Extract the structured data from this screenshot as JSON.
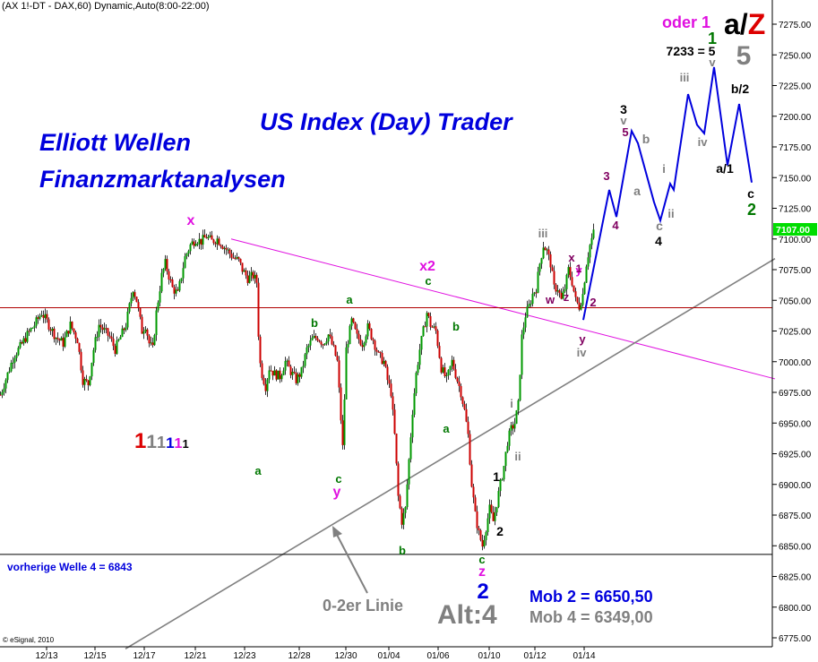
{
  "header": {
    "title": "(AX 1!-DT - DAX,60) Dynamic,Auto(8:00-22:00)"
  },
  "copyright": "© eSignal, 2010",
  "colors": {
    "blue": "#0000dd",
    "magenta": "#e010e0",
    "green": "#007700",
    "grey": "#808080",
    "red": "#dd0000",
    "purple": "#800060",
    "black": "#000000",
    "priceRed": "#b00000"
  },
  "chart_data": {
    "type": "candlestick",
    "title": "",
    "xlabel": "",
    "ylabel": "",
    "ylim": [
      6762,
      7290
    ],
    "y_ticks": [
      "7275.00",
      "7250.00",
      "7225.00",
      "7200.00",
      "7175.00",
      "7150.00",
      "7125.00",
      "7100.00",
      "7075.00",
      "7050.00",
      "7025.00",
      "7000.00",
      "6975.00",
      "6950.00",
      "6925.00",
      "6900.00",
      "6875.00",
      "6850.00",
      "6825.00",
      "6800.00",
      "6775.00"
    ],
    "x_ticks": [
      "12/13",
      "12/15",
      "12/17",
      "12/21",
      "12/23",
      "12/28",
      "12/30",
      "01/04",
      "01/06",
      "01/10",
      "01/12",
      "01/14"
    ],
    "last_price_label": "7107.00",
    "price_series_approx": [
      [
        0,
        6973
      ],
      [
        8,
        6990
      ],
      [
        15,
        7005
      ],
      [
        22,
        7012
      ],
      [
        30,
        7022
      ],
      [
        38,
        7030
      ],
      [
        46,
        7040
      ],
      [
        54,
        7030
      ],
      [
        62,
        7020
      ],
      [
        70,
        7015
      ],
      [
        78,
        7030
      ],
      [
        86,
        7018
      ],
      [
        92,
        6985
      ],
      [
        98,
        6982
      ],
      [
        104,
        7010
      ],
      [
        110,
        7030
      ],
      [
        116,
        7025
      ],
      [
        122,
        7020
      ],
      [
        128,
        7010
      ],
      [
        134,
        7020
      ],
      [
        140,
        7030
      ],
      [
        148,
        7060
      ],
      [
        152,
        7050
      ],
      [
        158,
        7025
      ],
      [
        162,
        7030
      ],
      [
        166,
        7015
      ],
      [
        170,
        7010
      ],
      [
        174,
        7040
      ],
      [
        180,
        7070
      ],
      [
        184,
        7080
      ],
      [
        188,
        7070
      ],
      [
        192,
        7060
      ],
      [
        198,
        7055
      ],
      [
        202,
        7070
      ],
      [
        206,
        7085
      ],
      [
        212,
        7095
      ],
      [
        218,
        7100
      ],
      [
        224,
        7098
      ],
      [
        230,
        7102
      ],
      [
        236,
        7098
      ],
      [
        242,
        7100
      ],
      [
        248,
        7095
      ],
      [
        254,
        7090
      ],
      [
        260,
        7085
      ],
      [
        266,
        7082
      ],
      [
        270,
        7075
      ],
      [
        276,
        7068
      ],
      [
        282,
        7070
      ],
      [
        286,
        7065
      ],
      [
        289,
        7002
      ],
      [
        292,
        6990
      ],
      [
        296,
        6980
      ],
      [
        300,
        6995
      ],
      [
        306,
        6990
      ],
      [
        312,
        6988
      ],
      [
        318,
        7000
      ],
      [
        324,
        6992
      ],
      [
        330,
        6985
      ],
      [
        336,
        6992
      ],
      [
        342,
        7010
      ],
      [
        348,
        7018
      ],
      [
        354,
        7020
      ],
      [
        360,
        7015
      ],
      [
        366,
        7022
      ],
      [
        372,
        7010
      ],
      [
        376,
        7000
      ],
      [
        379,
        6965
      ],
      [
        382,
        6930
      ],
      [
        386,
        7010
      ],
      [
        392,
        7033
      ],
      [
        398,
        7020
      ],
      [
        404,
        7015
      ],
      [
        410,
        7028
      ],
      [
        416,
        7018
      ],
      [
        422,
        7005
      ],
      [
        428,
        7000
      ],
      [
        432,
        6985
      ],
      [
        436,
        6975
      ],
      [
        440,
        6940
      ],
      [
        444,
        6890
      ],
      [
        448,
        6870
      ],
      [
        452,
        6880
      ],
      [
        456,
        6920
      ],
      [
        460,
        6960
      ],
      [
        464,
        6990
      ],
      [
        468,
        7010
      ],
      [
        472,
        7025
      ],
      [
        476,
        7040
      ],
      [
        480,
        7030
      ],
      [
        486,
        7025
      ],
      [
        492,
        6995
      ],
      [
        498,
        6985
      ],
      [
        504,
        7000
      ],
      [
        508,
        6990
      ],
      [
        514,
        6975
      ],
      [
        518,
        6960
      ],
      [
        522,
        6940
      ],
      [
        526,
        6900
      ],
      [
        530,
        6875
      ],
      [
        534,
        6860
      ],
      [
        538,
        6850
      ],
      [
        542,
        6865
      ],
      [
        546,
        6880
      ],
      [
        550,
        6870
      ],
      [
        554,
        6885
      ],
      [
        558,
        6900
      ],
      [
        562,
        6915
      ],
      [
        566,
        6935
      ],
      [
        570,
        6945
      ],
      [
        574,
        6950
      ],
      [
        578,
        6965
      ],
      [
        582,
        7020
      ],
      [
        586,
        7038
      ],
      [
        590,
        7045
      ],
      [
        594,
        7055
      ],
      [
        598,
        7060
      ],
      [
        602,
        7080
      ],
      [
        606,
        7095
      ],
      [
        610,
        7090
      ],
      [
        614,
        7080
      ],
      [
        618,
        7060
      ],
      [
        622,
        7060
      ],
      [
        626,
        7050
      ],
      [
        630,
        7060
      ],
      [
        634,
        7075
      ],
      [
        638,
        7065
      ],
      [
        642,
        7050
      ],
      [
        646,
        7045
      ],
      [
        650,
        7055
      ],
      [
        654,
        7080
      ],
      [
        658,
        7095
      ],
      [
        662,
        7105
      ]
    ],
    "projection_path": [
      [
        651,
        7034
      ],
      [
        680,
        7140
      ],
      [
        688,
        7118
      ],
      [
        705,
        7188
      ],
      [
        712,
        7178
      ],
      [
        730,
        7130
      ],
      [
        737,
        7115
      ],
      [
        748,
        7145
      ],
      [
        752,
        7140
      ],
      [
        755,
        7155
      ],
      [
        768,
        7218
      ],
      [
        778,
        7193
      ],
      [
        786,
        7186
      ],
      [
        797,
        7240
      ],
      [
        812,
        7160
      ],
      [
        825,
        7210
      ],
      [
        839,
        7146
      ]
    ],
    "trendlines": [
      {
        "name": "magenta-x-x2",
        "from": [
          258,
          7100
        ],
        "to": [
          865,
          6986
        ],
        "color": "#e010e0"
      },
      {
        "name": "0-2er-linie",
        "from": [
          140,
          6766
        ],
        "to": [
          865,
          7084
        ],
        "color": "#808080"
      },
      {
        "name": "red-horizontal",
        "from": [
          0,
          7044
        ],
        "to": [
          862,
          7044
        ],
        "color": "#b00000"
      },
      {
        "name": "black-horizontal",
        "from": [
          0,
          6843
        ],
        "to": [
          862,
          6843
        ],
        "color": "#000000"
      }
    ],
    "wave_labels": [
      {
        "text": "x",
        "x": 213,
        "y": 251,
        "color": "#e010e0",
        "size": 16,
        "bold": true
      },
      {
        "text": "x2",
        "x": 477,
        "y": 302,
        "color": "#e010e0",
        "size": 16,
        "bold": true
      },
      {
        "text": "c",
        "x": 478,
        "y": 318,
        "color": "#007700",
        "size": 13,
        "bold": true
      },
      {
        "text": "a",
        "x": 390,
        "y": 339,
        "color": "#007700",
        "size": 13,
        "bold": true
      },
      {
        "text": "b",
        "x": 351,
        "y": 365,
        "color": "#007700",
        "size": 13,
        "bold": true
      },
      {
        "text": "b",
        "x": 509,
        "y": 369,
        "color": "#007700",
        "size": 13,
        "bold": true
      },
      {
        "text": "a",
        "x": 498,
        "y": 483,
        "color": "#007700",
        "size": 13,
        "bold": true
      },
      {
        "text": "a",
        "x": 288,
        "y": 530,
        "color": "#007700",
        "size": 13,
        "bold": true
      },
      {
        "text": "c",
        "x": 378,
        "y": 539,
        "color": "#007700",
        "size": 13,
        "bold": true
      },
      {
        "text": "y",
        "x": 376,
        "y": 554,
        "color": "#e010e0",
        "size": 16,
        "bold": true
      },
      {
        "text": "b",
        "x": 449,
        "y": 619,
        "color": "#007700",
        "size": 13,
        "bold": true
      },
      {
        "text": "c",
        "x": 538,
        "y": 629,
        "color": "#007700",
        "size": 13,
        "bold": true
      },
      {
        "text": "z",
        "x": 538,
        "y": 643,
        "color": "#e010e0",
        "size": 16,
        "bold": true
      },
      {
        "text": "2",
        "x": 539,
        "y": 668,
        "color": "#0000dd",
        "size": 24,
        "bold": true
      },
      {
        "text": "1",
        "x": 554,
        "y": 537,
        "color": "#000000",
        "size": 14,
        "bold": true
      },
      {
        "text": "2",
        "x": 558,
        "y": 598,
        "color": "#000000",
        "size": 14,
        "bold": true
      },
      {
        "text": "i",
        "x": 571,
        "y": 455,
        "color": "#808080",
        "size": 13,
        "bold": true
      },
      {
        "text": "ii",
        "x": 578,
        "y": 514,
        "color": "#808080",
        "size": 13,
        "bold": true
      },
      {
        "text": "iii",
        "x": 606,
        "y": 265,
        "color": "#808080",
        "size": 13,
        "bold": true
      },
      {
        "text": "x",
        "x": 638,
        "y": 292,
        "color": "#800060",
        "size": 13,
        "bold": true
      },
      {
        "text": "y",
        "x": 646,
        "y": 306,
        "color": "#e010e0",
        "size": 13,
        "bold": true
      },
      {
        "text": "w",
        "x": 614,
        "y": 339,
        "color": "#800060",
        "size": 13,
        "bold": true
      },
      {
        "text": "z",
        "x": 632,
        "y": 336,
        "color": "#800060",
        "size": 13,
        "bold": true
      },
      {
        "text": "1",
        "x": 646,
        "y": 304,
        "color": "#800060",
        "size": 12,
        "bold": true
      },
      {
        "text": "2",
        "x": 662,
        "y": 342,
        "color": "#800060",
        "size": 13,
        "bold": true
      },
      {
        "text": "y",
        "x": 650,
        "y": 383,
        "color": "#800060",
        "size": 13,
        "bold": true
      },
      {
        "text": "iv",
        "x": 649,
        "y": 398,
        "color": "#808080",
        "size": 13,
        "bold": true
      },
      {
        "text": "3",
        "x": 677,
        "y": 201,
        "color": "#800060",
        "size": 13,
        "bold": true
      },
      {
        "text": "4",
        "x": 687,
        "y": 256,
        "color": "#800060",
        "size": 13,
        "bold": true
      },
      {
        "text": "3",
        "x": 696,
        "y": 127,
        "color": "#000000",
        "size": 14,
        "bold": true
      },
      {
        "text": "v",
        "x": 696,
        "y": 139,
        "color": "#808080",
        "size": 13,
        "bold": true
      },
      {
        "text": "5",
        "x": 698,
        "y": 152,
        "color": "#800060",
        "size": 13,
        "bold": true
      },
      {
        "text": "b",
        "x": 721,
        "y": 160,
        "color": "#808080",
        "size": 14,
        "bold": true
      },
      {
        "text": "a",
        "x": 711,
        "y": 218,
        "color": "#808080",
        "size": 14,
        "bold": true
      },
      {
        "text": "i",
        "x": 741,
        "y": 193,
        "color": "#808080",
        "size": 13,
        "bold": true
      },
      {
        "text": "ii",
        "x": 749,
        "y": 243,
        "color": "#808080",
        "size": 13,
        "bold": true
      },
      {
        "text": "c",
        "x": 736,
        "y": 257,
        "color": "#808080",
        "size": 14,
        "bold": true
      },
      {
        "text": "4",
        "x": 735,
        "y": 274,
        "color": "#000000",
        "size": 14,
        "bold": true
      },
      {
        "text": "iii",
        "x": 764,
        "y": 91,
        "color": "#808080",
        "size": 13,
        "bold": true
      },
      {
        "text": "iv",
        "x": 784,
        "y": 163,
        "color": "#808080",
        "size": 13,
        "bold": true
      },
      {
        "text": "v",
        "x": 795,
        "y": 74,
        "color": "#808080",
        "size": 13,
        "bold": true
      },
      {
        "text": "1",
        "x": 795,
        "y": 49,
        "color": "#007700",
        "size": 18,
        "bold": true
      },
      {
        "text": "7233 = 5",
        "x": 771,
        "y": 62,
        "color": "#000000",
        "size": 14,
        "bold": true
      },
      {
        "text": "5",
        "x": 830,
        "y": 72,
        "color": "#808080",
        "size": 30,
        "bold": true
      },
      {
        "text": "b/2",
        "x": 826,
        "y": 104,
        "color": "#000000",
        "size": 14,
        "bold": true
      },
      {
        "text": "a/1",
        "x": 809,
        "y": 193,
        "color": "#000000",
        "size": 14,
        "bold": true
      },
      {
        "text": "c",
        "x": 838,
        "y": 221,
        "color": "#000000",
        "size": 14,
        "bold": true
      },
      {
        "text": "2",
        "x": 839,
        "y": 240,
        "color": "#007700",
        "size": 18,
        "bold": true
      }
    ]
  },
  "annotations": {
    "oder_prefix": "oder",
    "oder_num": "1",
    "az_a": "a",
    "az_slash": "/",
    "az_z": "Z",
    "us_index": "US Index (Day) Trader",
    "elliott_line1": "Elliott Wellen",
    "elliott_line2": "Finanzmarktanalysen",
    "degree_sequence": [
      {
        "t": "1",
        "c": "#dd0000",
        "s": 24
      },
      {
        "t": "1",
        "c": "#808080",
        "s": 21
      },
      {
        "t": "1",
        "c": "#808080",
        "s": 18
      },
      {
        "t": "1",
        "c": "#0000dd",
        "s": 17
      },
      {
        "t": "1",
        "c": "#e010e0",
        "s": 16
      },
      {
        "t": "1",
        "c": "#000000",
        "s": 13
      }
    ],
    "vorherige_welle": "vorherige Welle 4 = 6843",
    "linie_label": "0-2er Linie",
    "alt4": "Alt:4",
    "mob2": "Mob 2 = 6650,50",
    "mob4": "Mob 4 = 6349,00"
  }
}
